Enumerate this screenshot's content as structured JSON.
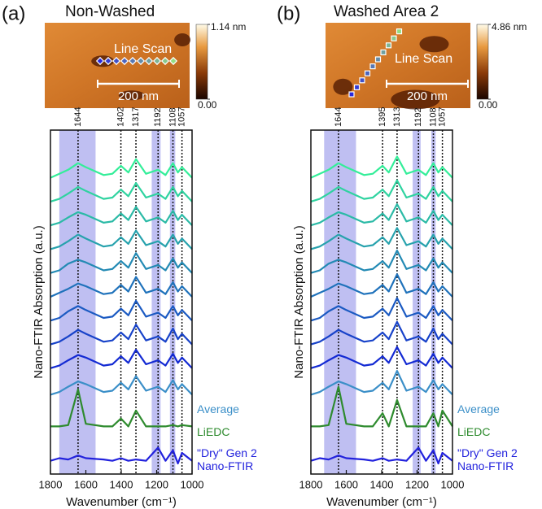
{
  "chart_data": [
    {
      "type": "line",
      "panel_label": "(a)",
      "title": "Non-Washed",
      "afm": {
        "annotation": "Line Scan",
        "scale_bar": "200 nm",
        "clim": [
          0,
          1.14
        ],
        "cticks": [
          {
            "value": 0,
            "label": "0.00"
          },
          {
            "value": 1.14,
            "label": "1.14 nm"
          }
        ]
      },
      "xlabel": "Wavenumber (cm⁻¹)",
      "ylabel": "Nano-FTIR Absorption (a.u.)",
      "xlim": [
        1800,
        1000
      ],
      "xticks": [
        1800,
        1600,
        1400,
        1200,
        1000
      ],
      "ylim": [
        0,
        13
      ],
      "peaks": [
        1644,
        1402,
        1317,
        1192,
        1108,
        1057
      ],
      "shaded_ranges": [
        [
          1750,
          1545
        ],
        [
          1228,
          1178
        ],
        [
          1125,
          1095
        ]
      ],
      "x": [
        1800,
        1750,
        1700,
        1644,
        1600,
        1500,
        1450,
        1402,
        1360,
        1317,
        1260,
        1192,
        1150,
        1108,
        1080,
        1057,
        1000
      ],
      "series": [
        {
          "color": "#33ee99",
          "values": [
            11.2,
            11.35,
            11.5,
            11.75,
            11.6,
            11.3,
            11.35,
            11.65,
            11.4,
            11.9,
            11.35,
            11.5,
            11.3,
            11.75,
            11.4,
            11.6,
            11.2
          ]
        },
        {
          "color": "#2fd3a0",
          "values": [
            10.3,
            10.4,
            10.6,
            10.85,
            10.7,
            10.4,
            10.45,
            10.75,
            10.5,
            11.0,
            10.45,
            10.6,
            10.4,
            10.85,
            10.5,
            10.7,
            10.3
          ]
        },
        {
          "color": "#2bbaa6",
          "values": [
            9.4,
            9.5,
            9.7,
            9.9,
            9.8,
            9.5,
            9.55,
            9.85,
            9.6,
            10.1,
            9.55,
            9.7,
            9.5,
            9.95,
            9.6,
            9.8,
            9.4
          ]
        },
        {
          "color": "#27a2ad",
          "values": [
            8.5,
            8.6,
            8.8,
            9.05,
            8.9,
            8.6,
            8.65,
            8.95,
            8.7,
            9.2,
            8.65,
            8.8,
            8.6,
            9.05,
            8.7,
            8.9,
            8.5
          ]
        },
        {
          "color": "#238ab4",
          "values": [
            7.6,
            7.7,
            7.95,
            8.1,
            8.0,
            7.7,
            7.75,
            8.05,
            7.8,
            8.35,
            7.75,
            7.9,
            7.7,
            8.15,
            7.8,
            8.0,
            7.6
          ]
        },
        {
          "color": "#1f72bb",
          "values": [
            6.7,
            6.85,
            7.0,
            7.2,
            7.1,
            6.8,
            6.85,
            7.15,
            6.9,
            7.45,
            6.85,
            7.0,
            6.8,
            7.25,
            6.9,
            7.1,
            6.7
          ]
        },
        {
          "color": "#1b5ac2",
          "values": [
            5.8,
            5.9,
            6.15,
            6.35,
            6.2,
            5.9,
            5.95,
            6.25,
            6.0,
            6.55,
            5.95,
            6.1,
            5.9,
            6.35,
            6.0,
            6.2,
            5.8
          ]
        },
        {
          "color": "#1742c9",
          "values": [
            4.9,
            5.0,
            5.2,
            5.45,
            5.3,
            5.0,
            5.05,
            5.35,
            5.1,
            5.65,
            5.05,
            5.2,
            5.0,
            5.5,
            5.1,
            5.3,
            4.9
          ]
        },
        {
          "color": "#132ad3",
          "values": [
            4.0,
            4.1,
            4.3,
            4.5,
            4.4,
            4.1,
            4.15,
            4.45,
            4.2,
            4.7,
            4.15,
            4.3,
            4.1,
            4.55,
            4.2,
            4.4,
            4.0
          ]
        },
        {
          "name": "Average",
          "color": "#3b8fc8",
          "values": [
            3.0,
            3.1,
            3.3,
            3.5,
            3.4,
            3.1,
            3.15,
            3.45,
            3.2,
            3.7,
            3.15,
            3.3,
            3.1,
            3.55,
            3.2,
            3.4,
            3.0
          ]
        },
        {
          "name": "LiEDC",
          "color": "#2e8b2e",
          "values": [
            1.8,
            1.8,
            1.85,
            3.2,
            1.9,
            1.8,
            1.8,
            2.1,
            1.8,
            2.4,
            1.8,
            1.8,
            1.8,
            1.85,
            1.8,
            1.85,
            1.8
          ]
        },
        {
          "name": "\"Dry\" Gen 2 Nano-FTIR",
          "color": "#2222dd",
          "values": [
            0.5,
            0.6,
            0.55,
            0.7,
            0.6,
            0.55,
            0.5,
            0.6,
            0.5,
            0.55,
            0.5,
            1.0,
            0.5,
            0.9,
            0.4,
            0.8,
            0.5
          ]
        }
      ]
    },
    {
      "type": "line",
      "panel_label": "(b)",
      "title": "Washed Area 2",
      "afm": {
        "annotation": "Line Scan",
        "scale_bar": "200 nm",
        "clim": [
          0,
          4.86
        ],
        "cticks": [
          {
            "value": 0,
            "label": "0.00"
          },
          {
            "value": 4.86,
            "label": "4.86 nm"
          }
        ]
      },
      "xlabel": "Wavenumber (cm⁻¹)",
      "ylabel": "Nano-FTIR Absorption (a.u.)",
      "xlim": [
        1800,
        1000
      ],
      "xticks": [
        1800,
        1600,
        1400,
        1200,
        1000
      ],
      "ylim": [
        0,
        13
      ],
      "peaks": [
        1644,
        1395,
        1313,
        1192,
        1108,
        1057
      ],
      "shaded_ranges": [
        [
          1725,
          1545
        ],
        [
          1225,
          1180
        ],
        [
          1120,
          1095
        ]
      ],
      "x": [
        1800,
        1750,
        1700,
        1644,
        1600,
        1500,
        1450,
        1395,
        1360,
        1313,
        1260,
        1192,
        1150,
        1108,
        1080,
        1057,
        1000
      ],
      "series": [
        {
          "color": "#33ee99",
          "values": [
            11.2,
            11.35,
            11.5,
            11.75,
            11.6,
            11.3,
            11.35,
            11.65,
            11.4,
            12.0,
            11.35,
            11.5,
            11.3,
            11.75,
            11.4,
            11.6,
            11.2
          ]
        },
        {
          "color": "#2fd3a0",
          "values": [
            10.3,
            10.4,
            10.6,
            10.85,
            10.7,
            10.4,
            10.45,
            10.75,
            10.5,
            11.1,
            10.45,
            10.6,
            10.4,
            10.85,
            10.5,
            10.7,
            10.3
          ]
        },
        {
          "color": "#2bbaa6",
          "values": [
            9.4,
            9.5,
            9.7,
            9.9,
            9.8,
            9.5,
            9.55,
            9.85,
            9.6,
            10.2,
            9.55,
            9.7,
            9.5,
            9.95,
            9.6,
            9.8,
            9.4
          ]
        },
        {
          "color": "#27a2ad",
          "values": [
            8.5,
            8.6,
            8.8,
            9.05,
            8.9,
            8.6,
            8.65,
            8.95,
            8.7,
            9.3,
            8.65,
            8.8,
            8.6,
            9.05,
            8.7,
            8.9,
            8.5
          ]
        },
        {
          "color": "#238ab4",
          "values": [
            7.6,
            7.7,
            7.95,
            8.1,
            8.0,
            7.7,
            7.75,
            8.05,
            7.8,
            8.45,
            7.75,
            7.9,
            7.7,
            8.15,
            7.8,
            8.0,
            7.6
          ]
        },
        {
          "color": "#1f72bb",
          "values": [
            6.7,
            6.85,
            7.0,
            7.2,
            7.1,
            6.8,
            6.85,
            7.15,
            6.9,
            7.55,
            6.85,
            7.0,
            6.8,
            7.25,
            6.9,
            7.1,
            6.7
          ]
        },
        {
          "color": "#1b5ac2",
          "values": [
            5.8,
            5.9,
            6.15,
            6.35,
            6.2,
            5.9,
            5.95,
            6.25,
            6.0,
            6.65,
            5.95,
            6.1,
            5.9,
            6.35,
            6.0,
            6.2,
            5.8
          ]
        },
        {
          "color": "#1742c9",
          "values": [
            4.9,
            5.0,
            5.2,
            5.45,
            5.3,
            5.0,
            5.05,
            5.35,
            5.1,
            5.75,
            5.05,
            5.2,
            5.0,
            5.5,
            5.1,
            5.3,
            4.9
          ]
        },
        {
          "color": "#132ad3",
          "values": [
            4.0,
            4.1,
            4.3,
            4.5,
            4.4,
            4.1,
            4.15,
            4.45,
            4.2,
            4.8,
            4.15,
            4.3,
            4.1,
            4.55,
            4.2,
            4.4,
            4.0
          ]
        },
        {
          "name": "Average",
          "color": "#3b8fc8",
          "values": [
            3.0,
            3.1,
            3.3,
            3.5,
            3.4,
            3.1,
            3.15,
            3.45,
            3.2,
            3.9,
            3.15,
            3.3,
            3.1,
            3.55,
            3.2,
            3.4,
            3.0
          ]
        },
        {
          "name": "LiEDC",
          "color": "#2e8b2e",
          "values": [
            1.8,
            1.8,
            1.85,
            3.3,
            1.9,
            1.8,
            1.8,
            2.3,
            1.8,
            2.8,
            1.8,
            1.8,
            1.8,
            2.3,
            1.8,
            2.4,
            1.8
          ]
        },
        {
          "name": "\"Dry\" Gen 2 Nano-FTIR",
          "color": "#2222dd",
          "values": [
            0.5,
            0.6,
            0.55,
            0.7,
            0.6,
            0.55,
            0.5,
            0.6,
            0.5,
            0.55,
            0.5,
            1.0,
            0.5,
            0.9,
            0.4,
            0.8,
            0.5
          ]
        }
      ]
    }
  ]
}
